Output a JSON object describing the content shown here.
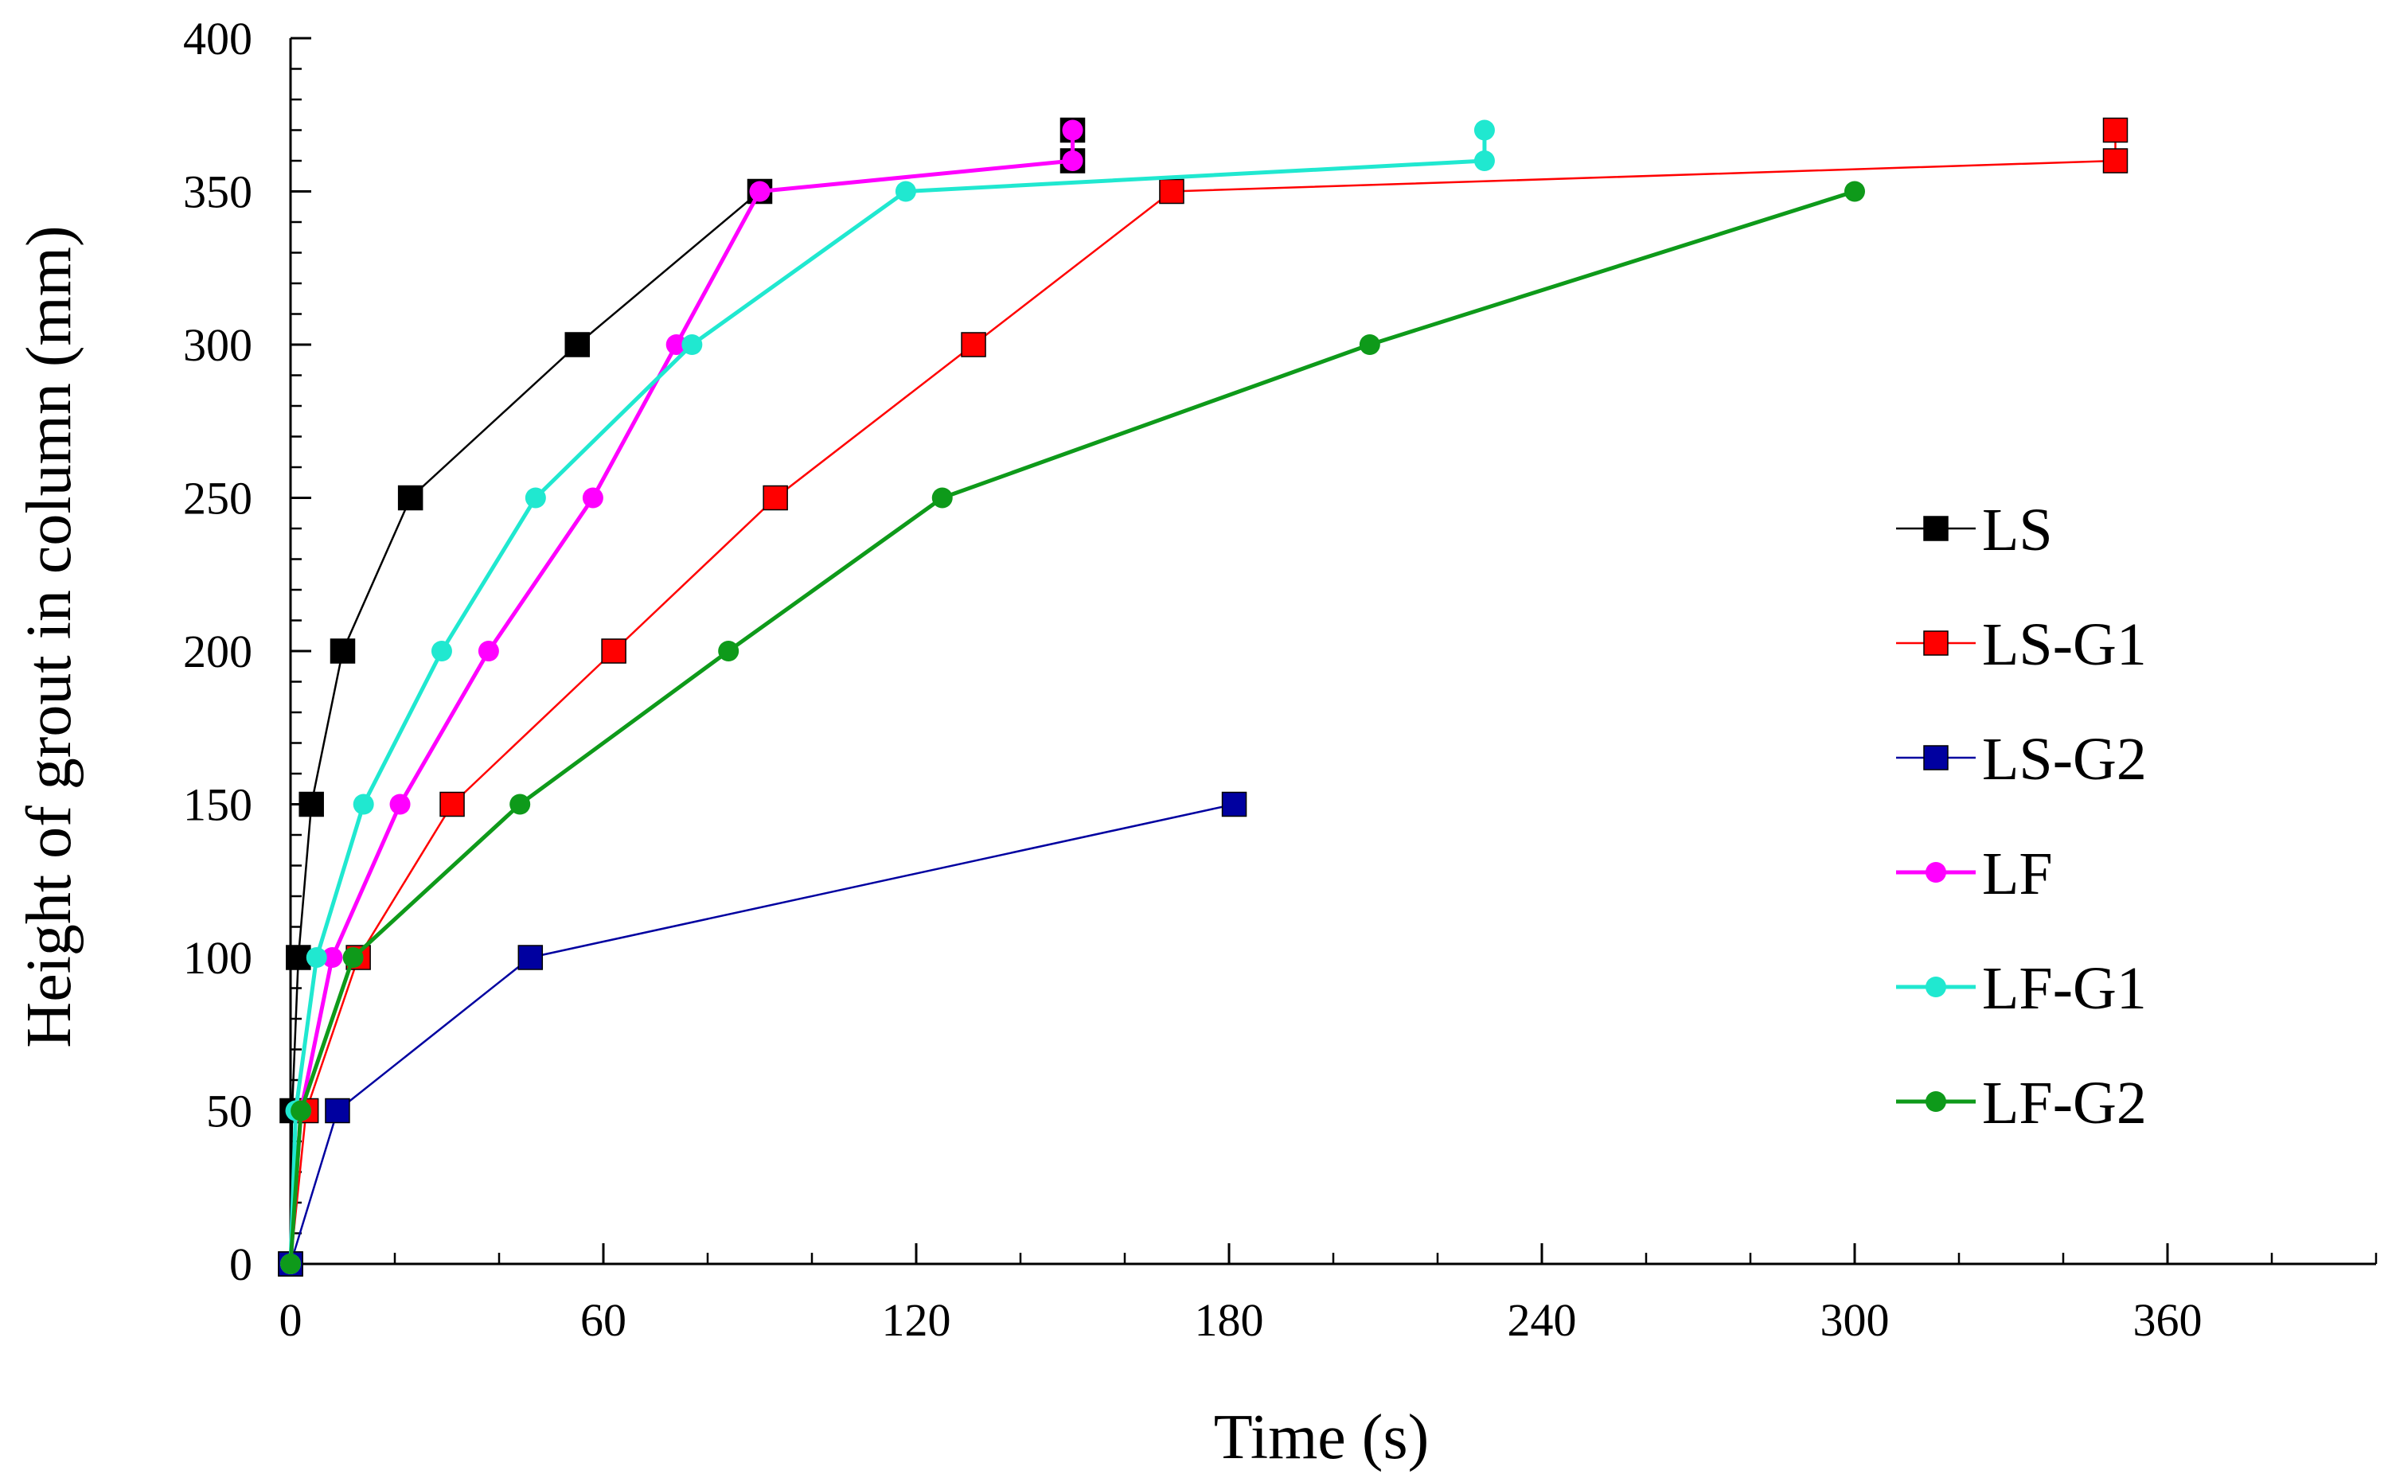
{
  "chart_data": {
    "type": "line",
    "xlabel": "Time (s)",
    "ylabel": "Height of grout in column (mm)",
    "xlim": [
      0,
      400
    ],
    "ylim": [
      0,
      400
    ],
    "xticks": [
      0,
      60,
      120,
      180,
      240,
      300,
      360
    ],
    "yticks": [
      0,
      50,
      100,
      150,
      200,
      250,
      300,
      350,
      400
    ],
    "legend_position": "right",
    "series": [
      {
        "name": "LS",
        "color": "#000000",
        "marker": "square",
        "x": [
          0,
          0.3,
          1.5,
          4,
          10,
          23,
          55,
          90,
          150,
          150
        ],
        "y": [
          0,
          50,
          100,
          150,
          200,
          250,
          300,
          350,
          360,
          370
        ]
      },
      {
        "name": "LS-G1",
        "color": "#ff0000",
        "marker": "square",
        "x": [
          0,
          3,
          13,
          31,
          62,
          93,
          131,
          169,
          350,
          350
        ],
        "y": [
          0,
          50,
          100,
          150,
          200,
          250,
          300,
          350,
          360,
          370
        ]
      },
      {
        "name": "LS-G2",
        "color": "#0000a0",
        "marker": "square",
        "x": [
          0,
          9,
          46,
          181
        ],
        "y": [
          0,
          50,
          100,
          150
        ]
      },
      {
        "name": "LF",
        "color": "#ff00ff",
        "marker": "circle",
        "x": [
          0,
          2,
          8,
          21,
          38,
          58,
          74,
          90,
          150,
          150
        ],
        "y": [
          0,
          50,
          100,
          150,
          200,
          250,
          300,
          350,
          360,
          370
        ]
      },
      {
        "name": "LF-G1",
        "color": "#20e8d0",
        "marker": "circle",
        "x": [
          0,
          1,
          5,
          14,
          29,
          47,
          77,
          118,
          229,
          229
        ],
        "y": [
          0,
          50,
          100,
          150,
          200,
          250,
          300,
          350,
          360,
          370
        ]
      },
      {
        "name": "LF-G2",
        "color": "#0e9a1a",
        "marker": "circle",
        "x": [
          0,
          2,
          12,
          44,
          84,
          125,
          207,
          300
        ],
        "y": [
          0,
          50,
          100,
          150,
          200,
          250,
          300,
          350
        ]
      }
    ]
  }
}
